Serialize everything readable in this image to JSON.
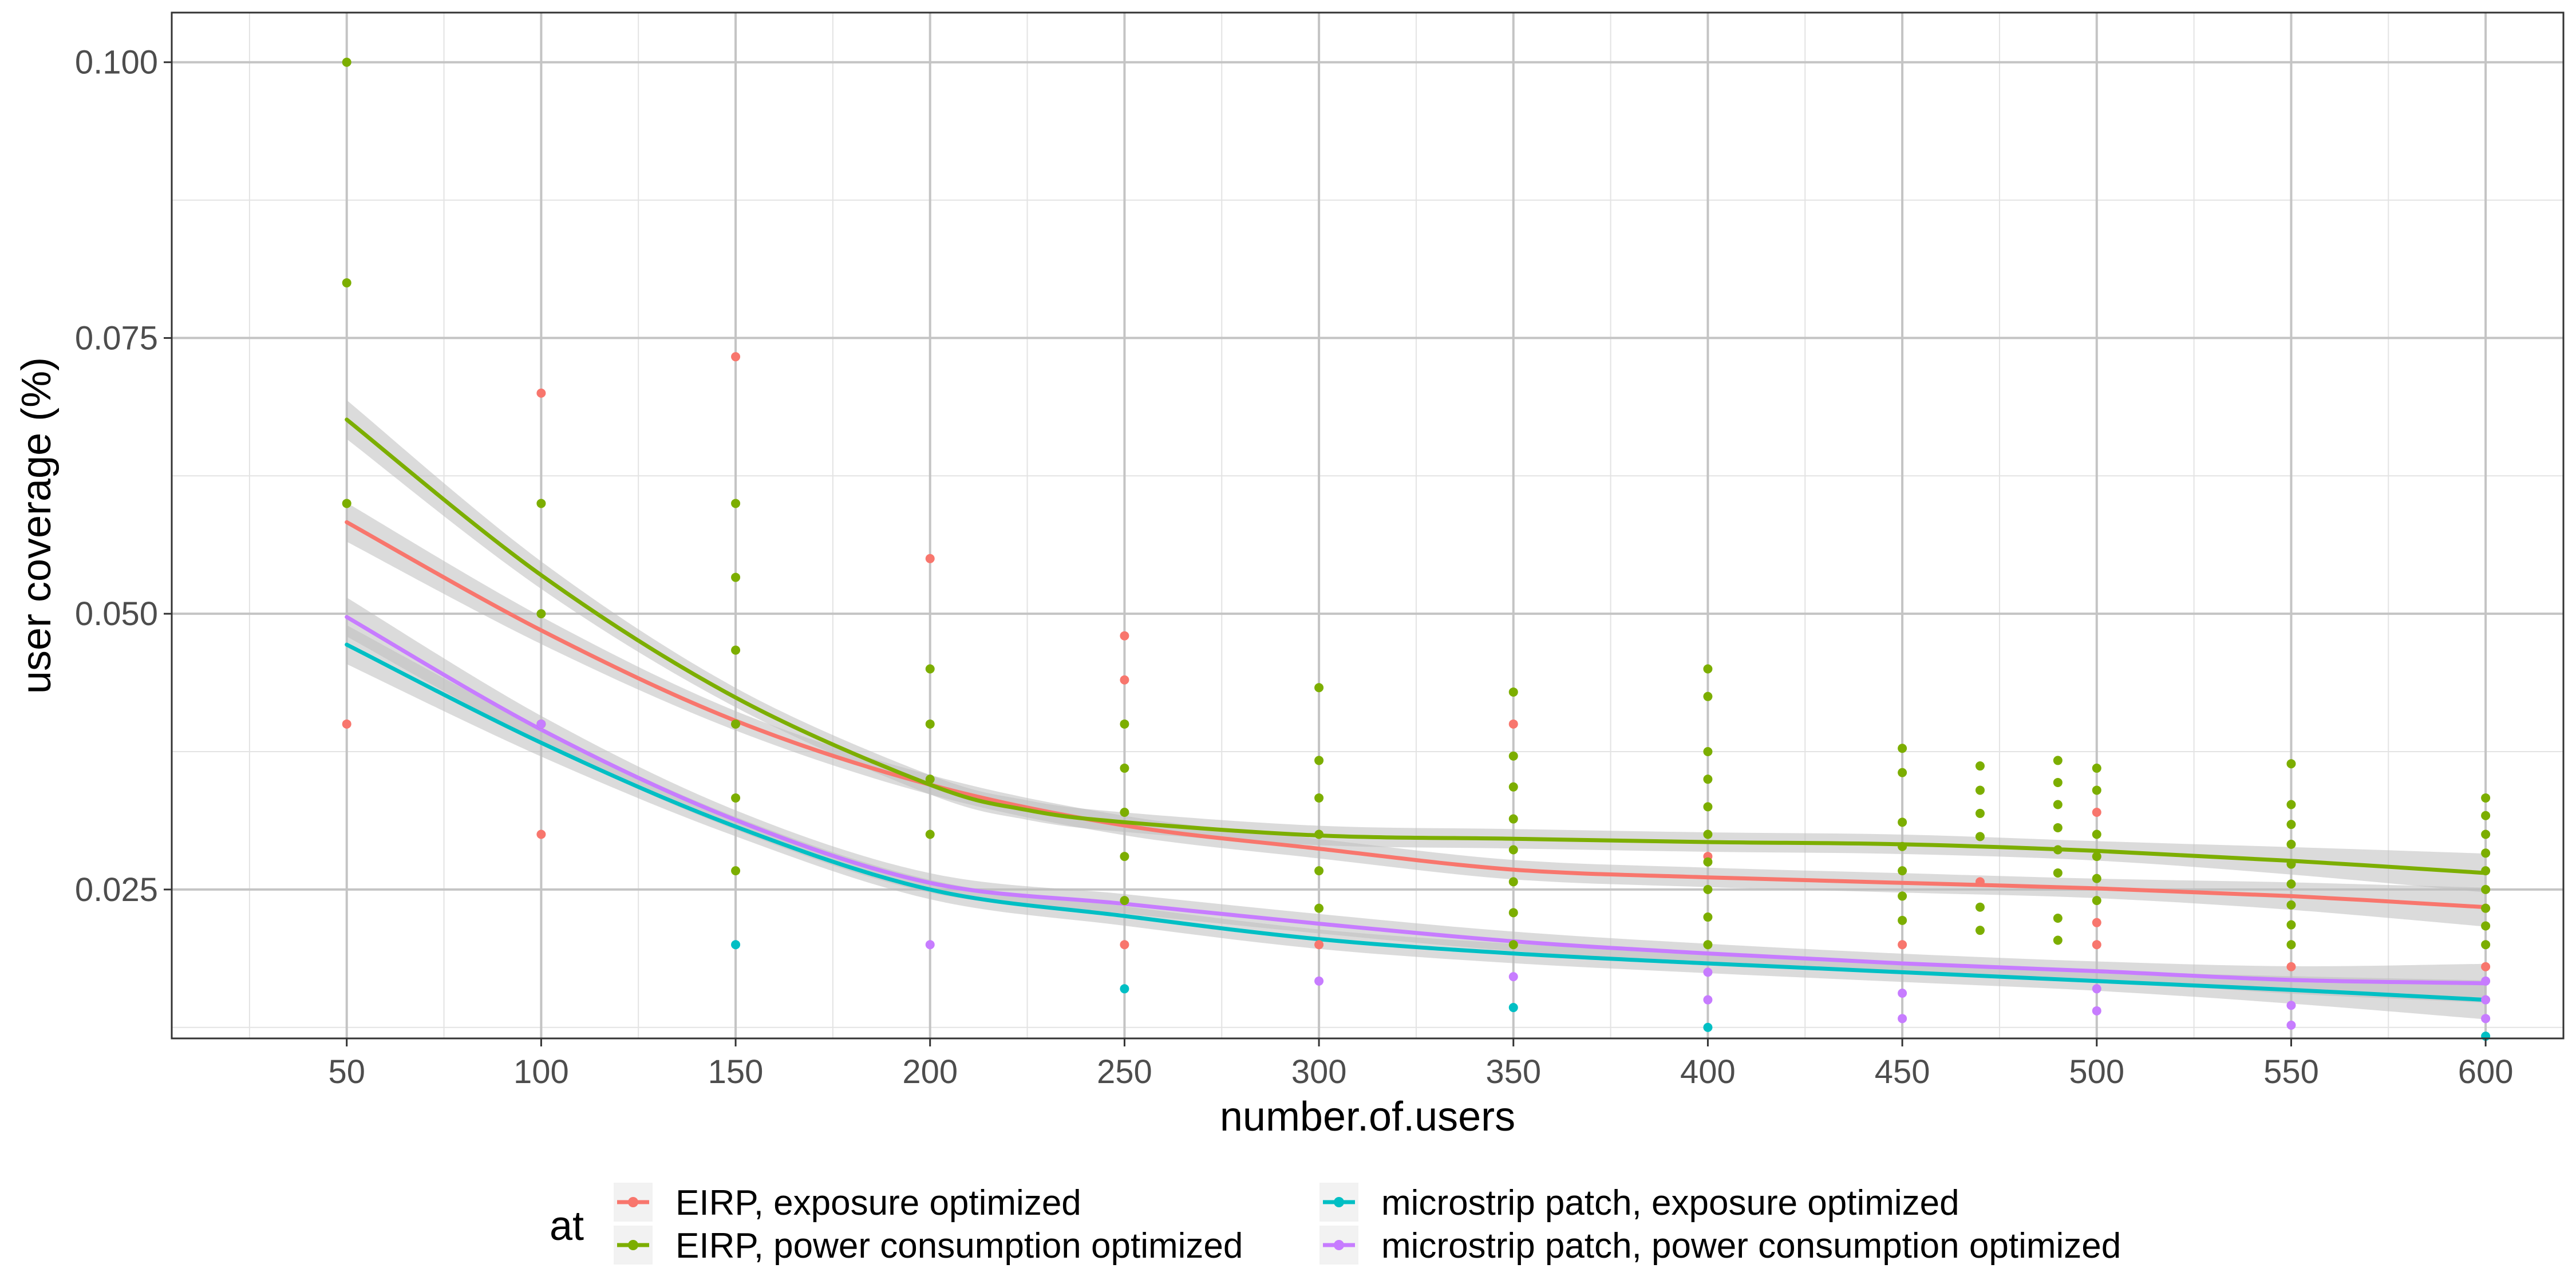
{
  "chart_data": {
    "type": "scatter",
    "xlabel": "number.of.users",
    "ylabel": "user coverage (%)",
    "xlim": [
      5,
      620
    ],
    "ylim": [
      0.0115,
      0.1045
    ],
    "x_ticks": [
      50,
      100,
      150,
      200,
      250,
      300,
      350,
      400,
      450,
      500,
      550,
      600
    ],
    "y_ticks": [
      0.025,
      0.05,
      0.075,
      0.1
    ],
    "y_tick_labels": [
      "0.025",
      "0.050",
      "0.075",
      "0.100"
    ],
    "grid": true,
    "legend": {
      "title": "at",
      "position": "bottom",
      "entries": [
        "EIRP, exposure optimized",
        "EIRP, power consumption optimized",
        "microstrip patch, exposure optimized",
        "microstrip patch, power consumption optimized"
      ]
    },
    "series": [
      {
        "name": "EIRP, exposure optimized",
        "color": "#F8766D",
        "points": [
          [
            50,
            0.04
          ],
          [
            100,
            0.07
          ],
          [
            100,
            0.03
          ],
          [
            150,
            0.0733
          ],
          [
            150,
            0.04
          ],
          [
            200,
            0.055
          ],
          [
            250,
            0.048
          ],
          [
            250,
            0.044
          ],
          [
            250,
            0.02
          ],
          [
            300,
            0.02
          ],
          [
            350,
            0.04
          ],
          [
            400,
            0.028
          ],
          [
            450,
            0.02
          ],
          [
            470,
            0.0257
          ],
          [
            500,
            0.032
          ],
          [
            500,
            0.022
          ],
          [
            500,
            0.02
          ],
          [
            550,
            0.018
          ],
          [
            600,
            0.0233
          ],
          [
            600,
            0.018
          ]
        ],
        "smooth": [
          [
            50,
            0.0583
          ],
          [
            100,
            0.0485
          ],
          [
            150,
            0.0403
          ],
          [
            200,
            0.0345
          ],
          [
            250,
            0.0308
          ],
          [
            300,
            0.0287
          ],
          [
            350,
            0.0268
          ],
          [
            400,
            0.0261
          ],
          [
            450,
            0.0256
          ],
          [
            500,
            0.0251
          ],
          [
            550,
            0.0244
          ],
          [
            600,
            0.0234
          ]
        ]
      },
      {
        "name": "EIRP, power consumption optimized",
        "color": "#7CAE00",
        "points": [
          [
            50,
            0.1
          ],
          [
            50,
            0.08
          ],
          [
            50,
            0.06
          ],
          [
            100,
            0.06
          ],
          [
            100,
            0.05
          ],
          [
            100,
            0.04
          ],
          [
            150,
            0.06
          ],
          [
            150,
            0.0533
          ],
          [
            150,
            0.0467
          ],
          [
            150,
            0.04
          ],
          [
            150,
            0.0333
          ],
          [
            150,
            0.0267
          ],
          [
            200,
            0.045
          ],
          [
            200,
            0.04
          ],
          [
            200,
            0.035
          ],
          [
            200,
            0.03
          ],
          [
            250,
            0.04
          ],
          [
            250,
            0.036
          ],
          [
            250,
            0.032
          ],
          [
            250,
            0.028
          ],
          [
            250,
            0.024
          ],
          [
            300,
            0.0433
          ],
          [
            300,
            0.0367
          ],
          [
            300,
            0.0333
          ],
          [
            300,
            0.03
          ],
          [
            300,
            0.0267
          ],
          [
            300,
            0.0233
          ],
          [
            350,
            0.0429
          ],
          [
            350,
            0.0371
          ],
          [
            350,
            0.0343
          ],
          [
            350,
            0.0314
          ],
          [
            350,
            0.0286
          ],
          [
            350,
            0.0257
          ],
          [
            350,
            0.0229
          ],
          [
            350,
            0.02
          ],
          [
            400,
            0.045
          ],
          [
            400,
            0.0425
          ],
          [
            400,
            0.0375
          ],
          [
            400,
            0.035
          ],
          [
            400,
            0.0325
          ],
          [
            400,
            0.03
          ],
          [
            400,
            0.0275
          ],
          [
            400,
            0.025
          ],
          [
            400,
            0.0225
          ],
          [
            400,
            0.02
          ],
          [
            450,
            0.0378
          ],
          [
            450,
            0.0356
          ],
          [
            450,
            0.0311
          ],
          [
            450,
            0.0289
          ],
          [
            450,
            0.0267
          ],
          [
            450,
            0.0244
          ],
          [
            450,
            0.0222
          ],
          [
            470,
            0.0362
          ],
          [
            470,
            0.034
          ],
          [
            470,
            0.0319
          ],
          [
            470,
            0.0298
          ],
          [
            470,
            0.0234
          ],
          [
            470,
            0.0213
          ],
          [
            490,
            0.0367
          ],
          [
            490,
            0.0347
          ],
          [
            490,
            0.0327
          ],
          [
            490,
            0.0306
          ],
          [
            490,
            0.0286
          ],
          [
            490,
            0.0265
          ],
          [
            490,
            0.0224
          ],
          [
            490,
            0.0204
          ],
          [
            500,
            0.036
          ],
          [
            500,
            0.034
          ],
          [
            500,
            0.03
          ],
          [
            500,
            0.028
          ],
          [
            500,
            0.026
          ],
          [
            500,
            0.024
          ],
          [
            550,
            0.0364
          ],
          [
            550,
            0.0327
          ],
          [
            550,
            0.0309
          ],
          [
            550,
            0.0291
          ],
          [
            550,
            0.0273
          ],
          [
            550,
            0.0255
          ],
          [
            550,
            0.0236
          ],
          [
            550,
            0.0218
          ],
          [
            550,
            0.02
          ],
          [
            600,
            0.0333
          ],
          [
            600,
            0.0317
          ],
          [
            600,
            0.03
          ],
          [
            600,
            0.0283
          ],
          [
            600,
            0.0267
          ],
          [
            600,
            0.025
          ],
          [
            600,
            0.0233
          ],
          [
            600,
            0.0217
          ],
          [
            600,
            0.02
          ]
        ],
        "smooth": [
          [
            50,
            0.0676
          ],
          [
            100,
            0.0535
          ],
          [
            150,
            0.0424
          ],
          [
            200,
            0.0345
          ],
          [
            225,
            0.0322
          ],
          [
            250,
            0.0311
          ],
          [
            300,
            0.0299
          ],
          [
            350,
            0.0296
          ],
          [
            400,
            0.0293
          ],
          [
            450,
            0.0291
          ],
          [
            500,
            0.0285
          ],
          [
            550,
            0.0276
          ],
          [
            600,
            0.0265
          ]
        ]
      },
      {
        "name": "microstrip patch, exposure optimized",
        "color": "#00BFC4",
        "points": [
          [
            150,
            0.02
          ],
          [
            250,
            0.016
          ],
          [
            350,
            0.0143
          ],
          [
            400,
            0.0125
          ],
          [
            600,
            0.0117
          ]
        ],
        "smooth": [
          [
            50,
            0.0472
          ],
          [
            100,
            0.0383
          ],
          [
            150,
            0.0307
          ],
          [
            200,
            0.025
          ],
          [
            250,
            0.0226
          ],
          [
            300,
            0.0205
          ],
          [
            350,
            0.0192
          ],
          [
            400,
            0.0183
          ],
          [
            450,
            0.0175
          ],
          [
            500,
            0.0167
          ],
          [
            550,
            0.0159
          ],
          [
            600,
            0.015
          ]
        ]
      },
      {
        "name": "microstrip patch, power consumption optimized",
        "color": "#C77CFF",
        "points": [
          [
            100,
            0.04
          ],
          [
            200,
            0.02
          ],
          [
            300,
            0.0167
          ],
          [
            350,
            0.0171
          ],
          [
            400,
            0.015
          ],
          [
            400,
            0.0175
          ],
          [
            450,
            0.0133
          ],
          [
            450,
            0.0156
          ],
          [
            500,
            0.014
          ],
          [
            500,
            0.016
          ],
          [
            550,
            0.0127
          ],
          [
            550,
            0.0145
          ],
          [
            600,
            0.0133
          ],
          [
            600,
            0.015
          ],
          [
            600,
            0.0167
          ]
        ],
        "smooth": [
          [
            50,
            0.0497
          ],
          [
            100,
            0.0395
          ],
          [
            150,
            0.0313
          ],
          [
            200,
            0.0256
          ],
          [
            250,
            0.0237
          ],
          [
            300,
            0.0219
          ],
          [
            350,
            0.0203
          ],
          [
            400,
            0.0192
          ],
          [
            450,
            0.0183
          ],
          [
            500,
            0.0176
          ],
          [
            550,
            0.0168
          ],
          [
            600,
            0.0165
          ]
        ]
      }
    ]
  }
}
